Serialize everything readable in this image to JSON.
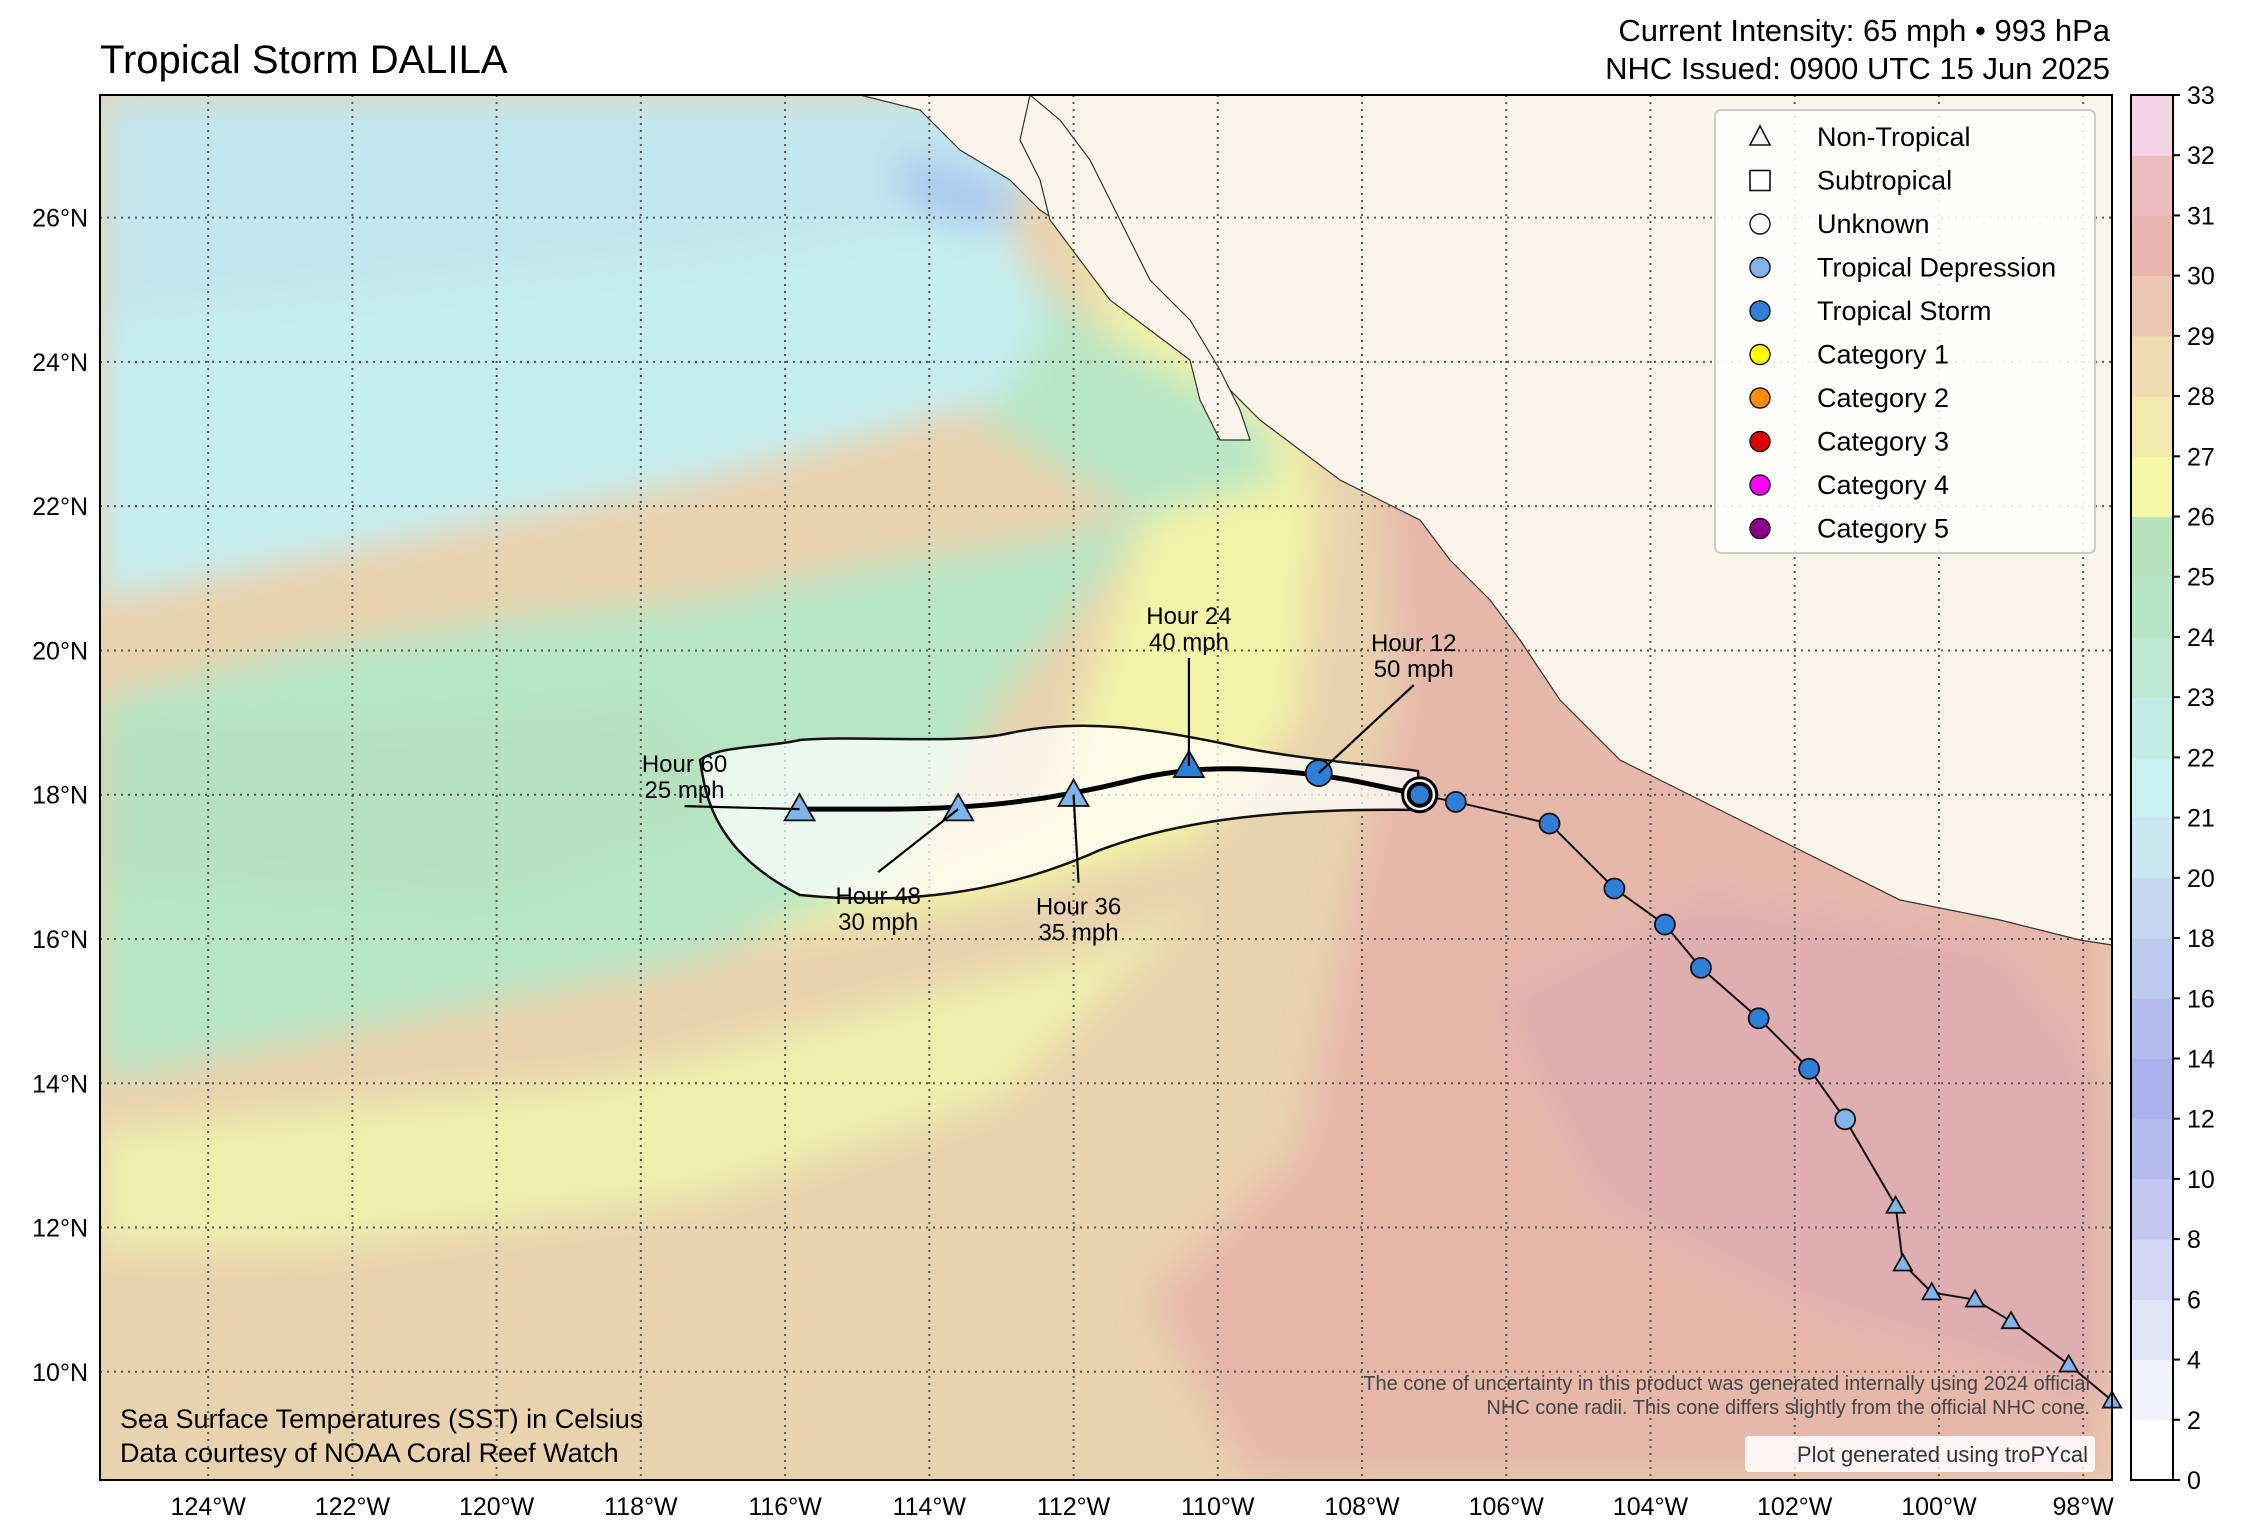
{
  "title": "Tropical Storm DALILA",
  "header": {
    "intensity": "Current Intensity: 65 mph • 993 hPa",
    "issued": "NHC Issued: 0900 UTC 15 Jun 2025"
  },
  "map": {
    "lon_range": [
      -125.5,
      -97.6
    ],
    "lat_range": [
      8.5,
      27.7
    ],
    "lon_ticks": [
      {
        "value": -124,
        "label": "124°W"
      },
      {
        "value": -122,
        "label": "122°W"
      },
      {
        "value": -120,
        "label": "120°W"
      },
      {
        "value": -118,
        "label": "118°W"
      },
      {
        "value": -116,
        "label": "116°W"
      },
      {
        "value": -114,
        "label": "114°W"
      },
      {
        "value": -112,
        "label": "112°W"
      },
      {
        "value": -110,
        "label": "110°W"
      },
      {
        "value": -108,
        "label": "108°W"
      },
      {
        "value": -106,
        "label": "106°W"
      },
      {
        "value": -104,
        "label": "104°W"
      },
      {
        "value": -102,
        "label": "102°W"
      },
      {
        "value": -100,
        "label": "100°W"
      },
      {
        "value": -98,
        "label": "98°W"
      }
    ],
    "lat_ticks": [
      {
        "value": 10,
        "label": "10°N"
      },
      {
        "value": 12,
        "label": "12°N"
      },
      {
        "value": 14,
        "label": "14°N"
      },
      {
        "value": 16,
        "label": "16°N"
      },
      {
        "value": 18,
        "label": "18°N"
      },
      {
        "value": 20,
        "label": "20°N"
      },
      {
        "value": 22,
        "label": "22°N"
      },
      {
        "value": 24,
        "label": "24°N"
      },
      {
        "value": 26,
        "label": "26°N"
      }
    ]
  },
  "legend": [
    {
      "label": "Non-Tropical",
      "shape": "triangle",
      "color": "#ffffff"
    },
    {
      "label": "Subtropical",
      "shape": "square",
      "color": "#ffffff"
    },
    {
      "label": "Unknown",
      "shape": "circle",
      "color": "#ffffff"
    },
    {
      "label": "Tropical Depression",
      "shape": "circle",
      "color": "#82b4ec"
    },
    {
      "label": "Tropical Storm",
      "shape": "circle",
      "color": "#2f7fd8"
    },
    {
      "label": "Category 1",
      "shape": "circle",
      "color": "#ffff00"
    },
    {
      "label": "Category 2",
      "shape": "circle",
      "color": "#ff8c00"
    },
    {
      "label": "Category 3",
      "shape": "circle",
      "color": "#dd0000"
    },
    {
      "label": "Category 4",
      "shape": "circle",
      "color": "#ff00fc"
    },
    {
      "label": "Category 5",
      "shape": "circle",
      "color": "#8b0088"
    }
  ],
  "colorbar": {
    "ticks": [
      "0",
      "2",
      "4",
      "6",
      "8",
      "10",
      "12",
      "14",
      "16",
      "18",
      "20",
      "21",
      "22",
      "23",
      "24",
      "25",
      "26",
      "27",
      "28",
      "29",
      "30",
      "31",
      "32",
      "33"
    ],
    "colors": [
      "#ffffff",
      "#f2f2fc",
      "#e3e3f8",
      "#d4d6f5",
      "#c4c8f1",
      "#b6bbee",
      "#abb1ec",
      "#b3bced",
      "#bdcbee",
      "#c3d7f0",
      "#c9e6f1",
      "#c8f1f2",
      "#c2ede2",
      "#bde8d3",
      "#b8e4c6",
      "#b6e3bd",
      "#f4f7a5",
      "#f5eaae",
      "#f1dcb2",
      "#edc8b2",
      "#e8b4ae",
      "#ecbcc0",
      "#f5d3e6"
    ]
  },
  "track_history": [
    {
      "lon": -107.2,
      "lat": 18.0,
      "type": "circle",
      "cat": "TS"
    },
    {
      "lon": -106.7,
      "lat": 17.9,
      "type": "circle",
      "cat": "TS"
    },
    {
      "lon": -105.4,
      "lat": 17.6,
      "type": "circle",
      "cat": "TS"
    },
    {
      "lon": -104.5,
      "lat": 16.7,
      "type": "circle",
      "cat": "TS"
    },
    {
      "lon": -103.8,
      "lat": 16.2,
      "type": "circle",
      "cat": "TS"
    },
    {
      "lon": -103.3,
      "lat": 15.6,
      "type": "circle",
      "cat": "TS"
    },
    {
      "lon": -102.5,
      "lat": 14.9,
      "type": "circle",
      "cat": "TS"
    },
    {
      "lon": -101.8,
      "lat": 14.2,
      "type": "circle",
      "cat": "TS"
    },
    {
      "lon": -101.3,
      "lat": 13.5,
      "type": "circle",
      "cat": "TD"
    },
    {
      "lon": -100.6,
      "lat": 12.3,
      "type": "triangle",
      "cat": "TD"
    },
    {
      "lon": -100.5,
      "lat": 11.5,
      "type": "triangle",
      "cat": "TD"
    },
    {
      "lon": -100.1,
      "lat": 11.1,
      "type": "triangle",
      "cat": "TD"
    },
    {
      "lon": -99.5,
      "lat": 11.0,
      "type": "triangle",
      "cat": "TD"
    },
    {
      "lon": -99.0,
      "lat": 10.7,
      "type": "triangle",
      "cat": "TD"
    },
    {
      "lon": -98.2,
      "lat": 10.1,
      "type": "triangle",
      "cat": "TD"
    },
    {
      "lon": -97.6,
      "lat": 9.6,
      "type": "triangle",
      "cat": "TD"
    }
  ],
  "forecast": [
    {
      "lon": -107.2,
      "lat": 18.0,
      "type": "current",
      "cat": "TS"
    },
    {
      "lon": -108.6,
      "lat": 18.3,
      "type": "circle",
      "cat": "TS",
      "label": [
        "Hour 12",
        "50 mph"
      ]
    },
    {
      "lon": -110.4,
      "lat": 18.4,
      "type": "triangle",
      "cat": "TS",
      "label": [
        "Hour 24",
        "40 mph"
      ]
    },
    {
      "lon": -112.0,
      "lat": 18.0,
      "type": "triangle",
      "cat": "TD",
      "label": [
        "Hour 36",
        "35 mph"
      ]
    },
    {
      "lon": -113.6,
      "lat": 17.8,
      "type": "triangle",
      "cat": "TD",
      "label": [
        "Hour 48",
        "30 mph"
      ]
    },
    {
      "lon": -115.8,
      "lat": 17.8,
      "type": "triangle",
      "cat": "TD",
      "label": [
        "Hour 60",
        "25 mph"
      ]
    }
  ],
  "notes": {
    "sst_line1": "Sea Surface Temperatures (SST) in Celsius",
    "sst_line2": "Data courtesy of NOAA Coral Reef Watch",
    "cone_line1": "The cone of uncertainty in this product was generated internally using 2024 official",
    "cone_line2": "NHC cone radii. This cone differs slightly from the official NHC cone.",
    "credit": "Plot generated using troPYcal"
  }
}
